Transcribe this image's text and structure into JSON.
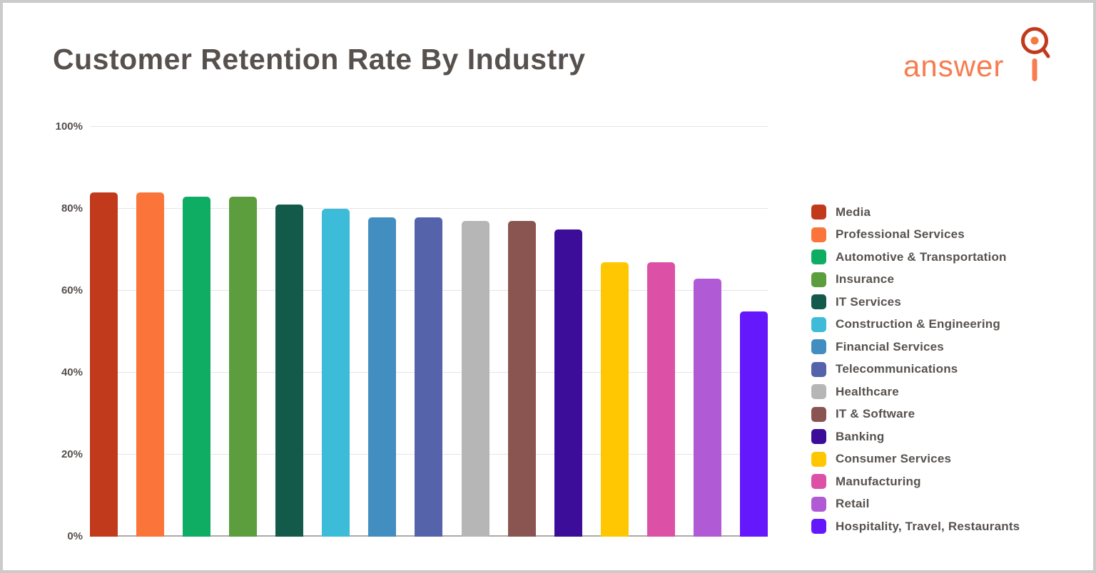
{
  "header": {
    "title": "Customer Retention Rate By Industry"
  },
  "logo": {
    "text": "answer",
    "icon": "magnifier-q-icon",
    "text_color": "#F87C4F",
    "mark_color": "#C23A1C",
    "dot_color": "#F5793E"
  },
  "chart_data": {
    "type": "bar",
    "title": "Customer Retention Rate By Industry",
    "xlabel": "",
    "ylabel": "",
    "ylim": [
      0,
      100
    ],
    "grid": "horizontal",
    "legend_position": "right",
    "unit": "%",
    "y_ticks": [
      {
        "label": "0%",
        "value": 0
      },
      {
        "label": "20%",
        "value": 20
      },
      {
        "label": "40%",
        "value": 40
      },
      {
        "label": "60%",
        "value": 60
      },
      {
        "label": "80%",
        "value": 80
      },
      {
        "label": "100%",
        "value": 100
      }
    ],
    "categories": [
      "Media",
      "Professional Services",
      "Automotive & Transportation",
      "Insurance",
      "IT Services",
      "Construction & Engineering",
      "Financial Services",
      "Telecommunications",
      "Healthcare",
      "IT & Software",
      "Banking",
      "Consumer Services",
      "Manufacturing",
      "Retail",
      "Hospitality, Travel, Restaurants"
    ],
    "values": [
      84,
      84,
      83,
      83,
      81,
      80,
      78,
      78,
      77,
      77,
      75,
      67,
      67,
      63,
      55
    ],
    "colors": [
      "#C23A1C",
      "#FB7439",
      "#0FAD63",
      "#5C9E3E",
      "#135A4B",
      "#3CBCD8",
      "#428EC0",
      "#5463AA",
      "#B5B6B5",
      "#8A5550",
      "#3C0D98",
      "#FFC702",
      "#DC50A5",
      "#B15AD5",
      "#6418FB"
    ]
  }
}
